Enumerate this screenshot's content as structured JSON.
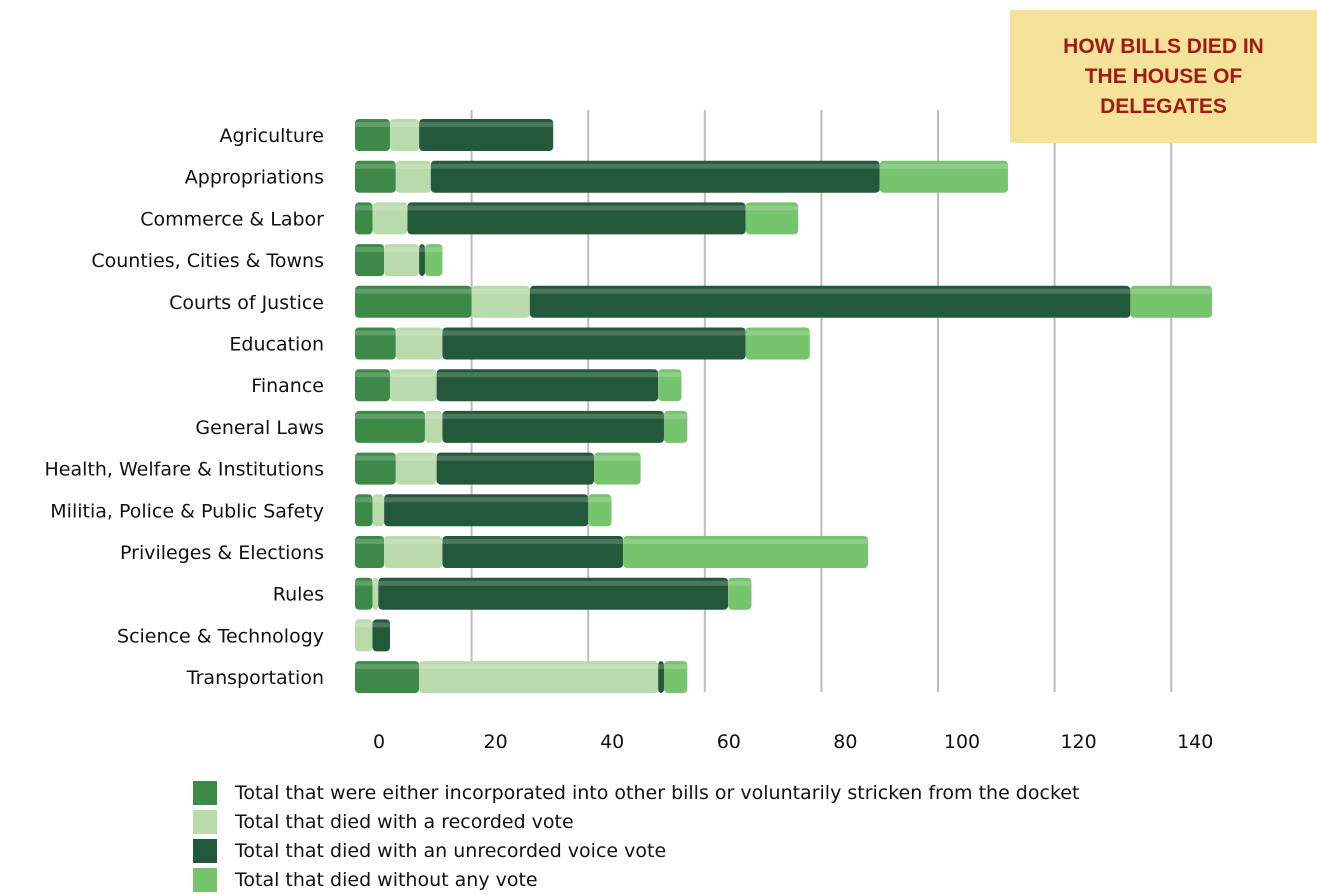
{
  "chart_data": {
    "type": "bar",
    "orientation": "horizontal",
    "stacked": true,
    "title": "HOW BILLS DIED IN THE HOUSE OF DELEGATES",
    "title_lines": [
      "HOW BILLS DIED IN",
      "THE HOUSE OF",
      "DELEGATES"
    ],
    "categories": [
      "Agriculture",
      "Appropriations",
      "Commerce & Labor",
      "Counties, Cities & Towns",
      "Courts of Justice",
      "Education",
      "Finance",
      "General Laws",
      "Health, Welfare & Institutions",
      "Militia, Police & Public Safety",
      "Privileges & Elections",
      "Rules",
      "Science & Technology",
      "Transportation"
    ],
    "series": [
      {
        "name": "Total that were either incorporated into other bills or voluntarily stricken from the docket",
        "color": "#3d8a48",
        "values": [
          6,
          7,
          3,
          5,
          20,
          7,
          6,
          12,
          7,
          3,
          5,
          3,
          0,
          11
        ]
      },
      {
        "name": "Total that died with a recorded vote",
        "color": "#b9dbab",
        "values": [
          5,
          6,
          6,
          6,
          10,
          8,
          8,
          3,
          7,
          2,
          10,
          1,
          3,
          41
        ]
      },
      {
        "name": "Total that died with an unrecorded voice vote",
        "color": "#23593a",
        "values": [
          23,
          77,
          58,
          1,
          103,
          52,
          38,
          38,
          27,
          35,
          31,
          60,
          3,
          1
        ]
      },
      {
        "name": "Total that died without any vote",
        "color": "#77c46e",
        "values": [
          0,
          22,
          9,
          3,
          14,
          11,
          4,
          4,
          8,
          4,
          42,
          4,
          0,
          4
        ]
      }
    ],
    "xlim": [
      0,
      147
    ],
    "xticks": [
      0,
      20,
      40,
      60,
      80,
      100,
      120,
      140
    ],
    "grid": true,
    "legend_position": "bottom",
    "xlabel": "",
    "ylabel": ""
  }
}
